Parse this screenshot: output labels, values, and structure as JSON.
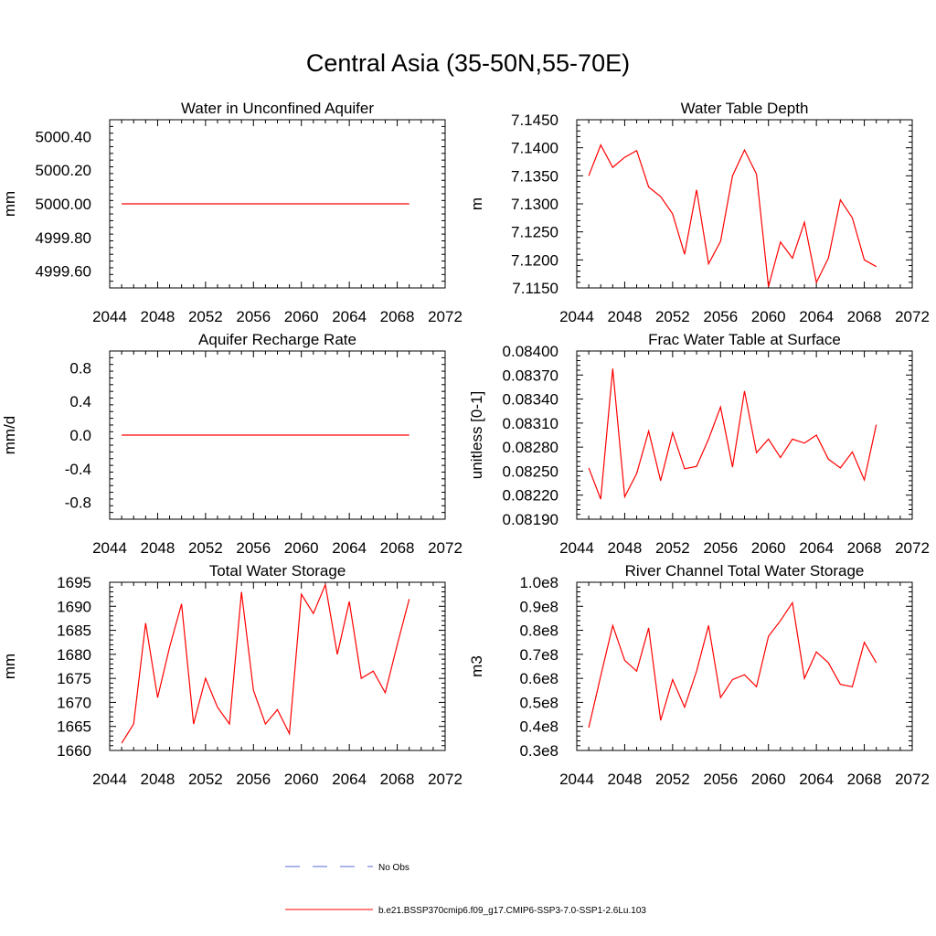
{
  "title": "Central Asia (35-50N,55-70E)",
  "colors": {
    "model": "#ff0000",
    "obs": "#5a6bd6"
  },
  "legend": {
    "obs_label": "No Obs",
    "model_label": "b.e21.BSSP370cmip6.f09_g17.CMIP6-SSP3-7.0-SSP1-2.6Lu.103"
  },
  "chart_data": [
    {
      "type": "line",
      "title": "Water in Unconfined Aquifer",
      "ylabel": "mm",
      "xlim": [
        2044,
        2072
      ],
      "ylim": [
        4999.5,
        5000.5
      ],
      "xticks": [
        2044,
        2048,
        2052,
        2056,
        2060,
        2064,
        2068,
        2072
      ],
      "yticks": [
        4999.6,
        4999.8,
        5000.0,
        5000.2,
        5000.4
      ],
      "ytick_labels": [
        "4999.60",
        "4999.80",
        "5000.00",
        "5000.20",
        "5000.40"
      ],
      "x": [
        2045,
        2046,
        2047,
        2048,
        2049,
        2050,
        2051,
        2052,
        2053,
        2054,
        2055,
        2056,
        2057,
        2058,
        2059,
        2060,
        2061,
        2062,
        2063,
        2064,
        2065,
        2066,
        2067,
        2068,
        2069
      ],
      "series": [
        {
          "values": [
            5000,
            5000,
            5000,
            5000,
            5000,
            5000,
            5000,
            5000,
            5000,
            5000,
            5000,
            5000,
            5000,
            5000,
            5000,
            5000,
            5000,
            5000,
            5000,
            5000,
            5000,
            5000,
            5000,
            5000,
            5000
          ]
        }
      ]
    },
    {
      "type": "line",
      "title": "Water Table Depth",
      "ylabel": "m",
      "xlim": [
        2044,
        2072
      ],
      "ylim": [
        7.115,
        7.145
      ],
      "xticks": [
        2044,
        2048,
        2052,
        2056,
        2060,
        2064,
        2068,
        2072
      ],
      "yticks": [
        7.115,
        7.12,
        7.125,
        7.13,
        7.135,
        7.14,
        7.145
      ],
      "ytick_labels": [
        "7.1150",
        "7.1200",
        "7.1250",
        "7.1300",
        "7.1350",
        "7.1400",
        "7.1450"
      ],
      "x": [
        2045,
        2046,
        2047,
        2048,
        2049,
        2050,
        2051,
        2052,
        2053,
        2054,
        2055,
        2056,
        2057,
        2058,
        2059,
        2060,
        2061,
        2062,
        2063,
        2064,
        2065,
        2066,
        2067,
        2068,
        2069
      ],
      "series": [
        {
          "values": [
            7.135,
            7.1405,
            7.1365,
            7.1383,
            7.1395,
            7.133,
            7.1313,
            7.1282,
            7.121,
            7.1325,
            7.1193,
            7.1233,
            7.135,
            7.1396,
            7.1353,
            7.1152,
            7.1232,
            7.1203,
            7.1267,
            7.116,
            7.1203,
            7.1307,
            7.1275,
            7.12,
            7.1188
          ]
        }
      ]
    },
    {
      "type": "line",
      "title": "Aquifer Recharge Rate",
      "ylabel": "mm/d",
      "xlim": [
        2044,
        2072
      ],
      "ylim": [
        -1.0,
        1.0
      ],
      "xticks": [
        2044,
        2048,
        2052,
        2056,
        2060,
        2064,
        2068,
        2072
      ],
      "yticks": [
        -0.8,
        -0.4,
        0.0,
        0.4,
        0.8
      ],
      "ytick_labels": [
        "-0.8",
        "-0.4",
        "0.0",
        "0.4",
        "0.8"
      ],
      "x": [
        2045,
        2046,
        2047,
        2048,
        2049,
        2050,
        2051,
        2052,
        2053,
        2054,
        2055,
        2056,
        2057,
        2058,
        2059,
        2060,
        2061,
        2062,
        2063,
        2064,
        2065,
        2066,
        2067,
        2068,
        2069
      ],
      "series": [
        {
          "values": [
            0,
            0,
            0,
            0,
            0,
            0,
            0,
            0,
            0,
            0,
            0,
            0,
            0,
            0,
            0,
            0,
            0,
            0,
            0,
            0,
            0,
            0,
            0,
            0,
            0
          ]
        }
      ]
    },
    {
      "type": "line",
      "title": "Frac Water Table at Surface",
      "ylabel": "unitless [0-1]",
      "xlim": [
        2044,
        2072
      ],
      "ylim": [
        0.0819,
        0.084
      ],
      "xticks": [
        2044,
        2048,
        2052,
        2056,
        2060,
        2064,
        2068,
        2072
      ],
      "yticks": [
        0.0819,
        0.0822,
        0.0825,
        0.0828,
        0.0831,
        0.0834,
        0.0837,
        0.084
      ],
      "ytick_labels": [
        "0.08190",
        "0.08220",
        "0.08250",
        "0.08280",
        "0.08310",
        "0.08340",
        "0.08370",
        "0.08400"
      ],
      "x": [
        2045,
        2046,
        2047,
        2048,
        2049,
        2050,
        2051,
        2052,
        2053,
        2054,
        2055,
        2056,
        2057,
        2058,
        2059,
        2060,
        2061,
        2062,
        2063,
        2064,
        2065,
        2066,
        2067,
        2068,
        2069
      ],
      "series": [
        {
          "values": [
            0.08254,
            0.08215,
            0.08378,
            0.08218,
            0.08247,
            0.083,
            0.08238,
            0.08298,
            0.08253,
            0.08256,
            0.0829,
            0.0833,
            0.08255,
            0.0835,
            0.08273,
            0.0829,
            0.08267,
            0.0829,
            0.08285,
            0.08295,
            0.08265,
            0.08254,
            0.08274,
            0.08239,
            0.08308
          ]
        }
      ]
    },
    {
      "type": "line",
      "title": "Total Water Storage",
      "ylabel": "mm",
      "xlim": [
        2044,
        2072
      ],
      "ylim": [
        1660,
        1695
      ],
      "xticks": [
        2044,
        2048,
        2052,
        2056,
        2060,
        2064,
        2068,
        2072
      ],
      "yticks": [
        1660,
        1665,
        1670,
        1675,
        1680,
        1685,
        1690,
        1695
      ],
      "ytick_labels": [
        "1660",
        "1665",
        "1670",
        "1675",
        "1680",
        "1685",
        "1690",
        "1695"
      ],
      "x": [
        2045,
        2046,
        2047,
        2048,
        2049,
        2050,
        2051,
        2052,
        2053,
        2054,
        2055,
        2056,
        2057,
        2058,
        2059,
        2060,
        2061,
        2062,
        2063,
        2064,
        2065,
        2066,
        2067,
        2068,
        2069
      ],
      "series": [
        {
          "values": [
            1661.5,
            1665.5,
            1686.5,
            1671.0,
            1681.5,
            1690.5,
            1665.5,
            1675.0,
            1669.0,
            1665.5,
            1693.0,
            1672.5,
            1665.5,
            1668.5,
            1663.5,
            1692.5,
            1688.5,
            1694.5,
            1680.0,
            1691.0,
            1675.0,
            1676.5,
            1672.0,
            1682.0,
            1691.5
          ]
        }
      ]
    },
    {
      "type": "line",
      "title": "River Channel Total Water Storage",
      "ylabel": "m3",
      "xlim": [
        2044,
        2072
      ],
      "ylim": [
        0.3,
        1.0
      ],
      "xticks": [
        2044,
        2048,
        2052,
        2056,
        2060,
        2064,
        2068,
        2072
      ],
      "yticks": [
        0.3,
        0.4,
        0.5,
        0.6,
        0.7,
        0.8,
        0.9,
        1.0
      ],
      "ytick_labels": [
        "0.3e8",
        "0.4e8",
        "0.5e8",
        "0.6e8",
        "0.7e8",
        "0.8e8",
        "0.9e8",
        "1.0e8"
      ],
      "x": [
        2045,
        2046,
        2047,
        2048,
        2049,
        2050,
        2051,
        2052,
        2053,
        2054,
        2055,
        2056,
        2057,
        2058,
        2059,
        2060,
        2061,
        2062,
        2063,
        2064,
        2065,
        2066,
        2067,
        2068,
        2069
      ],
      "series": [
        {
          "values": [
            0.395,
            0.61,
            0.82,
            0.675,
            0.63,
            0.81,
            0.425,
            0.595,
            0.48,
            0.63,
            0.82,
            0.52,
            0.595,
            0.615,
            0.565,
            0.775,
            0.84,
            0.915,
            0.6,
            0.71,
            0.665,
            0.575,
            0.565,
            0.75,
            0.665
          ]
        }
      ]
    }
  ]
}
